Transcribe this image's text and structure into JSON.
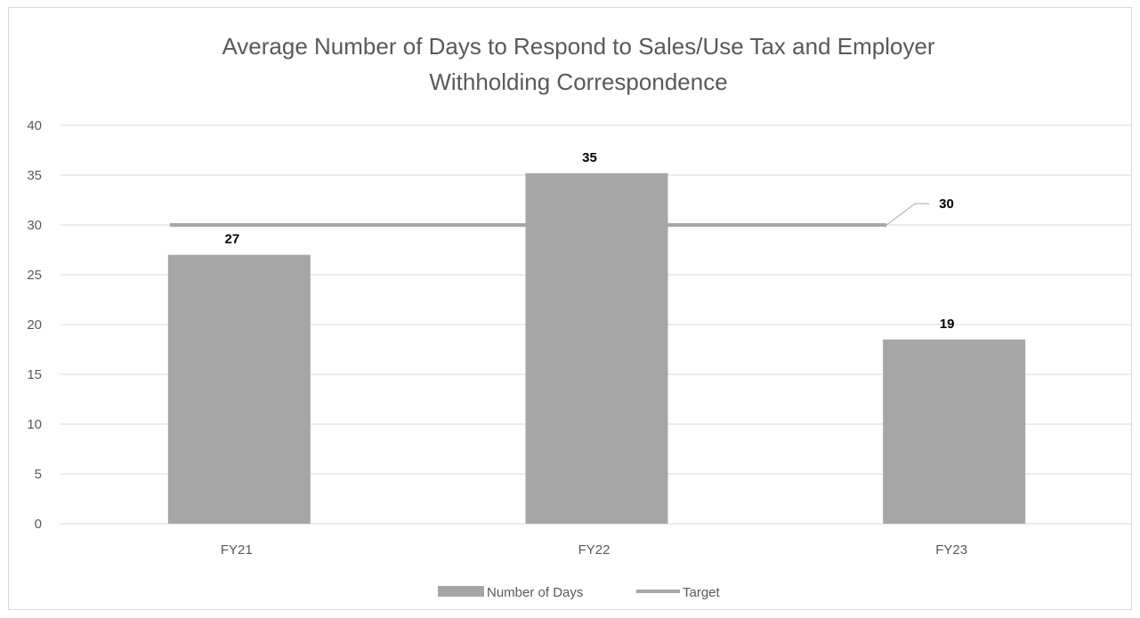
{
  "chart_data": {
    "type": "bar",
    "title_lines": [
      "Average Number of Days to Respond to Sales/Use Tax and Employer",
      "Withholding Correspondence"
    ],
    "categories": [
      "FY21",
      "FY22",
      "FY23"
    ],
    "series": [
      {
        "name": "Number of Days",
        "type": "bar",
        "values": [
          27,
          35.2,
          18.5
        ],
        "data_labels": [
          "27",
          "35",
          "19"
        ],
        "color": "#a6a6a6"
      },
      {
        "name": "Target",
        "type": "line",
        "values": [
          30,
          30,
          30
        ],
        "data_label": "30",
        "color": "#a6a6a6"
      }
    ],
    "ylim": [
      0,
      40
    ],
    "yticks": [
      0,
      5,
      10,
      15,
      20,
      25,
      30,
      35,
      40
    ],
    "grid": true,
    "legend_position": "bottom",
    "colors": {
      "axis_text": "#595959",
      "gridline": "#d9d9d9",
      "border": "#d9d9d9"
    }
  }
}
